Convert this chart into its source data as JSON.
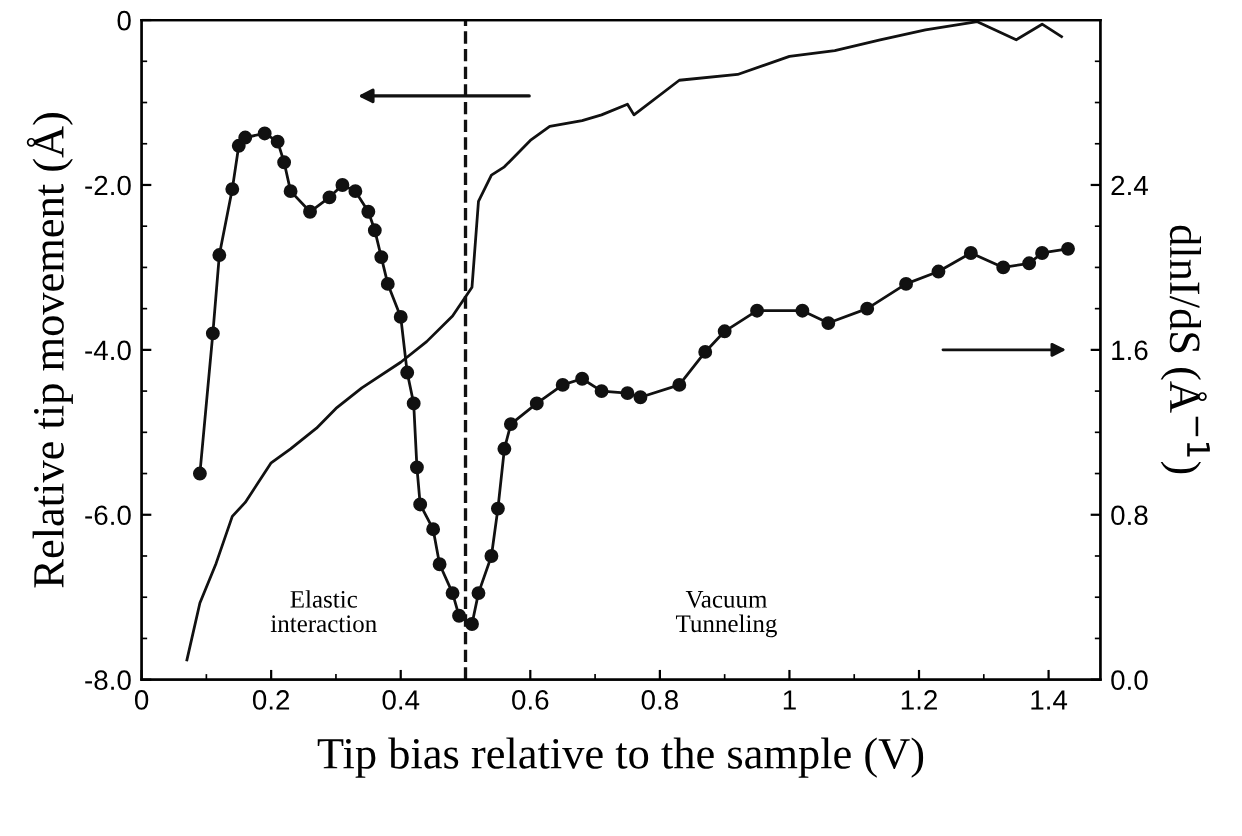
{
  "chart_data": {
    "type": "line",
    "xlabel": "Tip bias relative to the sample (V)",
    "ylabel": "Relative tip movement (Å)",
    "y2label": "dlnI/dS (Å$^{−1}$)",
    "xlim": [
      0,
      1.48
    ],
    "xticks": [
      0,
      0.2,
      0.4,
      0.6,
      0.8,
      1,
      1.2,
      1.4
    ],
    "ylim": [
      -8,
      0
    ],
    "yticks": [
      {
        "value": -8,
        "label": "-8.0"
      },
      {
        "value": -6,
        "label": "-6.0"
      },
      {
        "value": -4,
        "label": "-4.0"
      },
      {
        "value": -2,
        "label": "-2.0"
      },
      0
    ],
    "y2lim": [
      0,
      3.2
    ],
    "y2ticks": [
      {
        "value": 0,
        "label": "0.0"
      },
      0.8,
      1.6,
      2.4
    ],
    "grid": false,
    "legend": false,
    "series": [
      {
        "color": "#111111",
        "marker": "none",
        "x": [
          0.07,
          0.09,
          0.115,
          0.14,
          0.16,
          0.2,
          0.23,
          0.27,
          0.3,
          0.34,
          0.4,
          0.44,
          0.48,
          0.51,
          0.52,
          0.54,
          0.56,
          0.6,
          0.63,
          0.68,
          0.71,
          0.75,
          0.76,
          0.83,
          0.92,
          1.0,
          1.07,
          1.14,
          1.21,
          1.29,
          1.35,
          1.39,
          1.42
        ],
        "values": [
          -7.76,
          -7.07,
          -6.59,
          -6.02,
          -5.85,
          -5.37,
          -5.2,
          -4.95,
          -4.71,
          -4.46,
          -4.15,
          -3.9,
          -3.59,
          -3.24,
          -2.2,
          -1.88,
          -1.78,
          -1.46,
          -1.29,
          -1.22,
          -1.15,
          -1.02,
          -1.15,
          -0.73,
          -0.66,
          -0.44,
          -0.37,
          -0.24,
          -0.12,
          -0.02,
          -0.24,
          -0.05,
          -0.2
        ]
      },
      {
        "color": "#111111",
        "marker": "circle",
        "axis": "y2",
        "x": [
          0.09,
          0.11,
          0.12,
          0.14,
          0.15,
          0.16,
          0.19,
          0.21,
          0.22,
          0.23,
          0.26,
          0.29,
          0.31,
          0.33,
          0.35,
          0.36,
          0.37,
          0.38,
          0.4,
          0.41,
          0.42,
          0.425,
          0.43,
          0.45,
          0.46,
          0.48,
          0.49,
          0.51,
          0.52,
          0.54,
          0.55,
          0.56,
          0.57,
          0.61,
          0.65,
          0.68,
          0.71,
          0.75,
          0.77,
          0.83,
          0.87,
          0.9,
          0.95,
          1.02,
          1.06,
          1.12,
          1.18,
          1.23,
          1.28,
          1.33,
          1.37,
          1.39,
          1.43
        ],
        "values": [
          1.0,
          1.68,
          2.06,
          2.38,
          2.59,
          2.63,
          2.65,
          2.61,
          2.51,
          2.37,
          2.27,
          2.34,
          2.4,
          2.37,
          2.27,
          2.18,
          2.05,
          1.92,
          1.76,
          1.49,
          1.34,
          1.03,
          0.85,
          0.73,
          0.56,
          0.42,
          0.31,
          0.27,
          0.42,
          0.6,
          0.83,
          1.12,
          1.24,
          1.34,
          1.43,
          1.46,
          1.4,
          1.39,
          1.37,
          1.43,
          1.59,
          1.69,
          1.79,
          1.79,
          1.73,
          1.8,
          1.92,
          1.98,
          2.07,
          2.0,
          2.02,
          2.07,
          2.09
        ]
      }
    ],
    "ref_lines": [
      {
        "axis": "x",
        "value": 0.5,
        "line_style": "dashed",
        "color": "#111111"
      }
    ],
    "annotations": [
      "Elastic\ninteraction",
      "Vacuum\nTunneling"
    ]
  }
}
